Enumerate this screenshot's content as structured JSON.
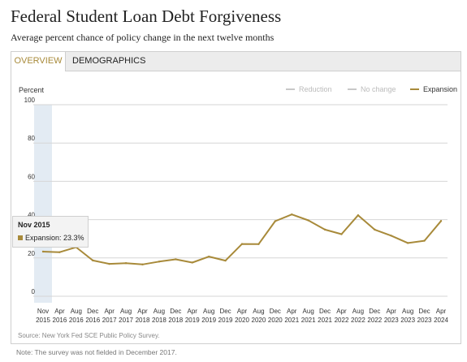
{
  "header": {
    "title": "Federal Student Loan Debt Forgiveness",
    "subtitle": "Average percent chance of policy change in the next twelve months"
  },
  "tabs": [
    {
      "label": "Overview",
      "active": true
    },
    {
      "label": "Demographics",
      "active": false
    }
  ],
  "tooltip": {
    "title": "Nov 2015",
    "series": "Expansion",
    "value": "23.3%",
    "label": "Expansion: 23.3%"
  },
  "source": "Source: New York Fed SCE Public Policy Survey.",
  "note": "Note: The survey was not fielded in December 2017.",
  "colors": {
    "expansion": "#a88a3a",
    "inactive_legend": "#c8c8c8",
    "highlight_band": "#e3ebf3"
  },
  "chart_data": {
    "type": "line",
    "ylabel": "Percent",
    "ylim": [
      0,
      100
    ],
    "yticks": [
      0,
      20,
      40,
      60,
      80,
      100
    ],
    "grid": true,
    "legend_position": "top-right",
    "legend": [
      {
        "name": "Reduction",
        "active": false
      },
      {
        "name": "No change",
        "active": false
      },
      {
        "name": "Expansion",
        "active": true
      }
    ],
    "categories": [
      [
        "Nov",
        "2015"
      ],
      [
        "Apr",
        "2016"
      ],
      [
        "Aug",
        "2016"
      ],
      [
        "Dec",
        "2016"
      ],
      [
        "Apr",
        "2017"
      ],
      [
        "Aug",
        "2017"
      ],
      [
        "Apr",
        "2018"
      ],
      [
        "Aug",
        "2018"
      ],
      [
        "Dec",
        "2018"
      ],
      [
        "Apr",
        "2019"
      ],
      [
        "Aug",
        "2019"
      ],
      [
        "Dec",
        "2019"
      ],
      [
        "Apr",
        "2020"
      ],
      [
        "Aug",
        "2020"
      ],
      [
        "Dec",
        "2020"
      ],
      [
        "Apr",
        "2021"
      ],
      [
        "Aug",
        "2021"
      ],
      [
        "Dec",
        "2021"
      ],
      [
        "Apr",
        "2022"
      ],
      [
        "Aug",
        "2022"
      ],
      [
        "Dec",
        "2022"
      ],
      [
        "Apr",
        "2023"
      ],
      [
        "Aug",
        "2023"
      ],
      [
        "Dec",
        "2023"
      ],
      [
        "Apr",
        "2024"
      ]
    ],
    "highlighted_index": 0,
    "series": [
      {
        "name": "Expansion",
        "values": [
          23.3,
          23.0,
          25.6,
          18.7,
          16.9,
          17.3,
          16.6,
          18.1,
          19.3,
          17.6,
          20.7,
          18.6,
          27.3,
          27.2,
          39.2,
          42.7,
          39.6,
          34.8,
          32.4,
          42.3,
          34.8,
          31.6,
          27.8,
          29.0,
          39.3
        ]
      }
    ]
  }
}
